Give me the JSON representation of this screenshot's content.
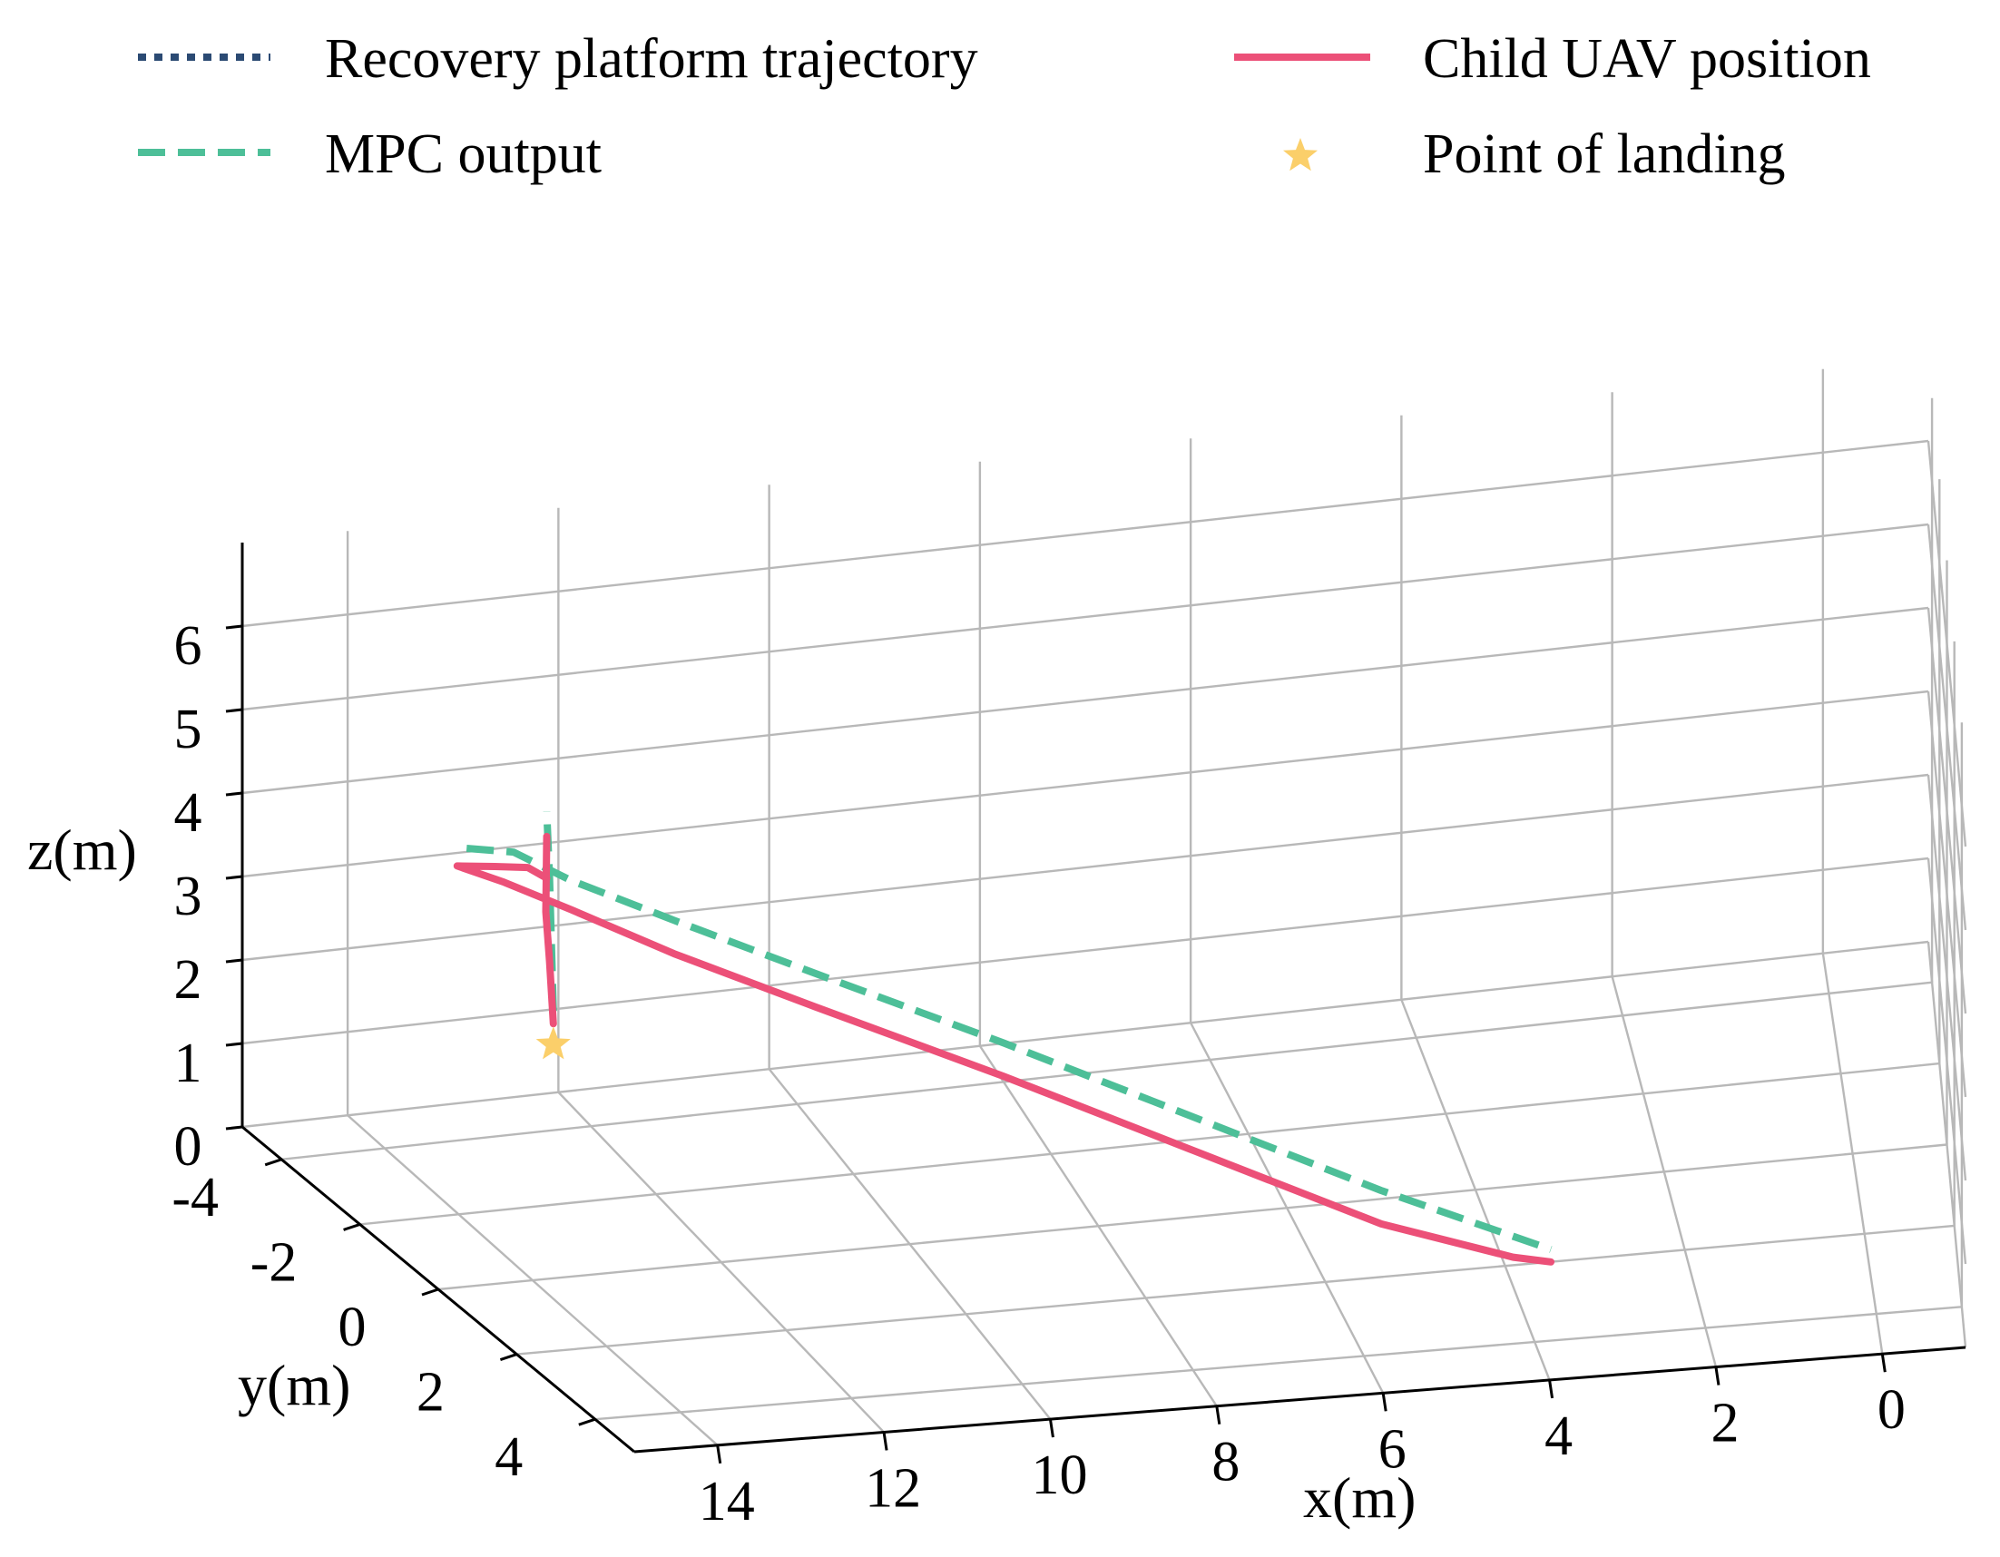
{
  "chart_data": {
    "type": "line3d",
    "title": "",
    "legend": {
      "placement": "top",
      "entries": [
        {
          "key": "platform",
          "label": "Recovery platform trajectory",
          "style": "dotted",
          "color": "#2b4a73"
        },
        {
          "key": "uav",
          "label": "Child UAV position",
          "style": "solid",
          "color": "#ec5078"
        },
        {
          "key": "mpc",
          "label": "MPC output",
          "style": "dashed",
          "color": "#4dbf98"
        },
        {
          "key": "landing",
          "label": "Point of landing",
          "style": "star-marker",
          "color": "#fbcf6a"
        }
      ]
    },
    "axes": {
      "x": {
        "label": "x(m)",
        "ticks": [
          14,
          12,
          10,
          8,
          6,
          4,
          2,
          0
        ],
        "tick_labels": [
          "14",
          "12",
          "10",
          "8",
          "6",
          "4",
          "2",
          "0"
        ],
        "range": [
          -1,
          15
        ]
      },
      "y": {
        "label": "y(m)",
        "ticks": [
          -4,
          -2,
          0,
          2,
          4
        ],
        "tick_labels": [
          "-4",
          "-2",
          "0",
          "2",
          "4"
        ],
        "range": [
          -5,
          5
        ]
      },
      "z": {
        "label": "z(m)",
        "ticks": [
          0,
          1,
          2,
          3,
          4,
          5,
          6
        ],
        "tick_labels": [
          "0",
          "1",
          "2",
          "3",
          "4",
          "5",
          "6"
        ],
        "range": [
          0,
          7
        ]
      }
    },
    "grid": true,
    "series": [
      {
        "key": "mpc",
        "name": "MPC output",
        "points": [
          {
            "x": 13.78,
            "y": 0.0,
            "z": 3.2
          },
          {
            "x": 13.8,
            "y": 0.0,
            "z": 4.0
          },
          {
            "x": 13.82,
            "y": 0.0,
            "z": 4.8
          },
          {
            "x": 13.85,
            "y": 0.0,
            "z": 5.6
          },
          null,
          {
            "x": 14.7,
            "y": 0.0,
            "z": 5.25
          },
          {
            "x": 14.2,
            "y": 0.0,
            "z": 5.15
          },
          {
            "x": 13.6,
            "y": 0.0,
            "z": 4.75
          },
          {
            "x": 12.5,
            "y": 0.0,
            "z": 4.15
          },
          {
            "x": 11.0,
            "y": 0.0,
            "z": 3.35
          },
          {
            "x": 9.0,
            "y": 0.0,
            "z": 2.3
          },
          {
            "x": 7.0,
            "y": 0.0,
            "z": 1.2
          },
          {
            "x": 5.0,
            "y": 0.0,
            "z": 0.1
          },
          {
            "x": 3.2,
            "y": 0.0,
            "z": -0.8
          }
        ]
      },
      {
        "key": "uav",
        "name": "Child UAV position",
        "points": [
          {
            "x": 13.78,
            "y": 0.0,
            "z": 3.05
          },
          {
            "x": 13.82,
            "y": 0.0,
            "z": 3.8
          },
          {
            "x": 13.86,
            "y": 0.0,
            "z": 4.4
          },
          {
            "x": 13.85,
            "y": 0.0,
            "z": 5.3
          },
          null,
          {
            "x": 13.85,
            "y": 0.0,
            "z": 4.8
          },
          {
            "x": 14.05,
            "y": 0.0,
            "z": 4.95
          },
          {
            "x": 14.4,
            "y": 0.0,
            "z": 5.0
          },
          {
            "x": 14.8,
            "y": 0.0,
            "z": 5.05
          },
          {
            "x": 14.3,
            "y": 0.0,
            "z": 4.8
          },
          {
            "x": 13.6,
            "y": 0.0,
            "z": 4.4
          },
          {
            "x": 12.5,
            "y": 0.0,
            "z": 3.75
          },
          {
            "x": 11.0,
            "y": 0.0,
            "z": 2.95
          },
          {
            "x": 9.0,
            "y": 0.0,
            "z": 1.9
          },
          {
            "x": 7.0,
            "y": 0.0,
            "z": 0.8
          },
          {
            "x": 5.0,
            "y": 0.0,
            "z": -0.3
          },
          {
            "x": 3.6,
            "y": 0.0,
            "z": -0.85
          },
          {
            "x": 3.2,
            "y": 0.0,
            "z": -0.95
          }
        ]
      }
    ],
    "landing_point": {
      "x": 13.78,
      "y": 0.0,
      "z": 2.8
    }
  }
}
